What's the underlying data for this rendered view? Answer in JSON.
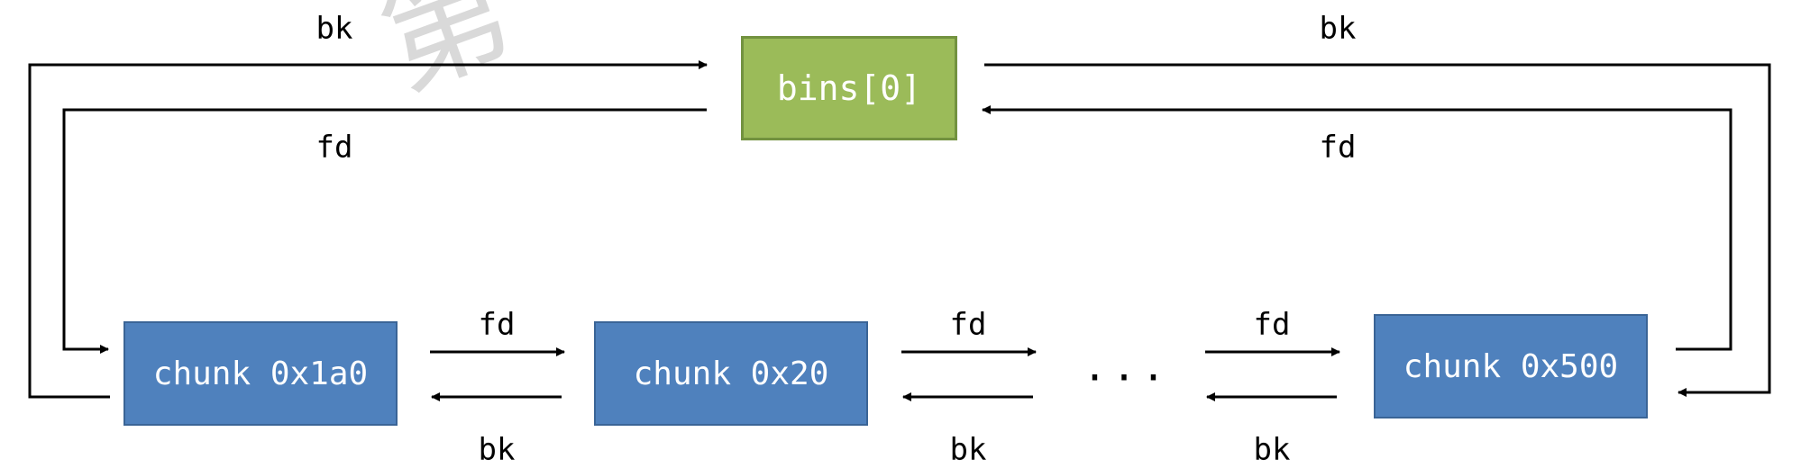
{
  "watermark": "第",
  "nodes": {
    "bins": "bins[0]",
    "chunk_a": "chunk 0x1a0",
    "chunk_b": "chunk 0x20",
    "ellipsis": "...",
    "chunk_c": "chunk 0x500"
  },
  "labels": {
    "bk": "bk",
    "fd": "fd"
  },
  "colors": {
    "chunk_fill": "#4f81bd",
    "bins_fill": "#9bbb59",
    "line": "#000000"
  }
}
